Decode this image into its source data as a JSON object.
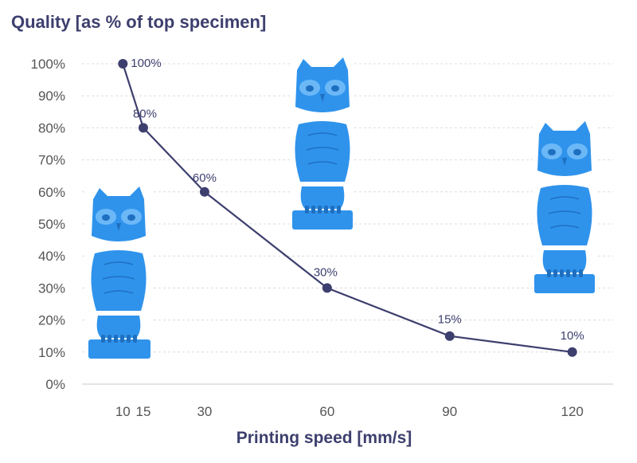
{
  "chart_data": {
    "type": "line",
    "title": "Quality [as % of top specimen]",
    "xlabel": "Printing speed [mm/s]",
    "ylabel": "",
    "x": [
      10,
      15,
      30,
      60,
      90,
      120
    ],
    "series": [
      {
        "values": [
          100,
          80,
          60,
          30,
          15,
          10
        ]
      }
    ],
    "data_labels": [
      "100%",
      "80%",
      "60%",
      "30%",
      "15%",
      "10%"
    ],
    "x_ticks": [
      "10",
      "15",
      "30",
      "60",
      "90",
      "120"
    ],
    "y_ticks": [
      "0%",
      "10%",
      "20%",
      "30%",
      "40%",
      "50%",
      "60%",
      "70%",
      "80%",
      "90%",
      "100%"
    ],
    "ylim": [
      0,
      100
    ],
    "xlim": [
      0,
      130
    ],
    "grid": "horizontal dashed",
    "legend": "none",
    "line_color": "#3d3f6e",
    "images": [
      {
        "name": "owl-photo-10",
        "x": 10
      },
      {
        "name": "owl-photo-60",
        "x": 60
      },
      {
        "name": "owl-photo-120",
        "x": 120
      }
    ],
    "image_color": "#2f93ec"
  }
}
